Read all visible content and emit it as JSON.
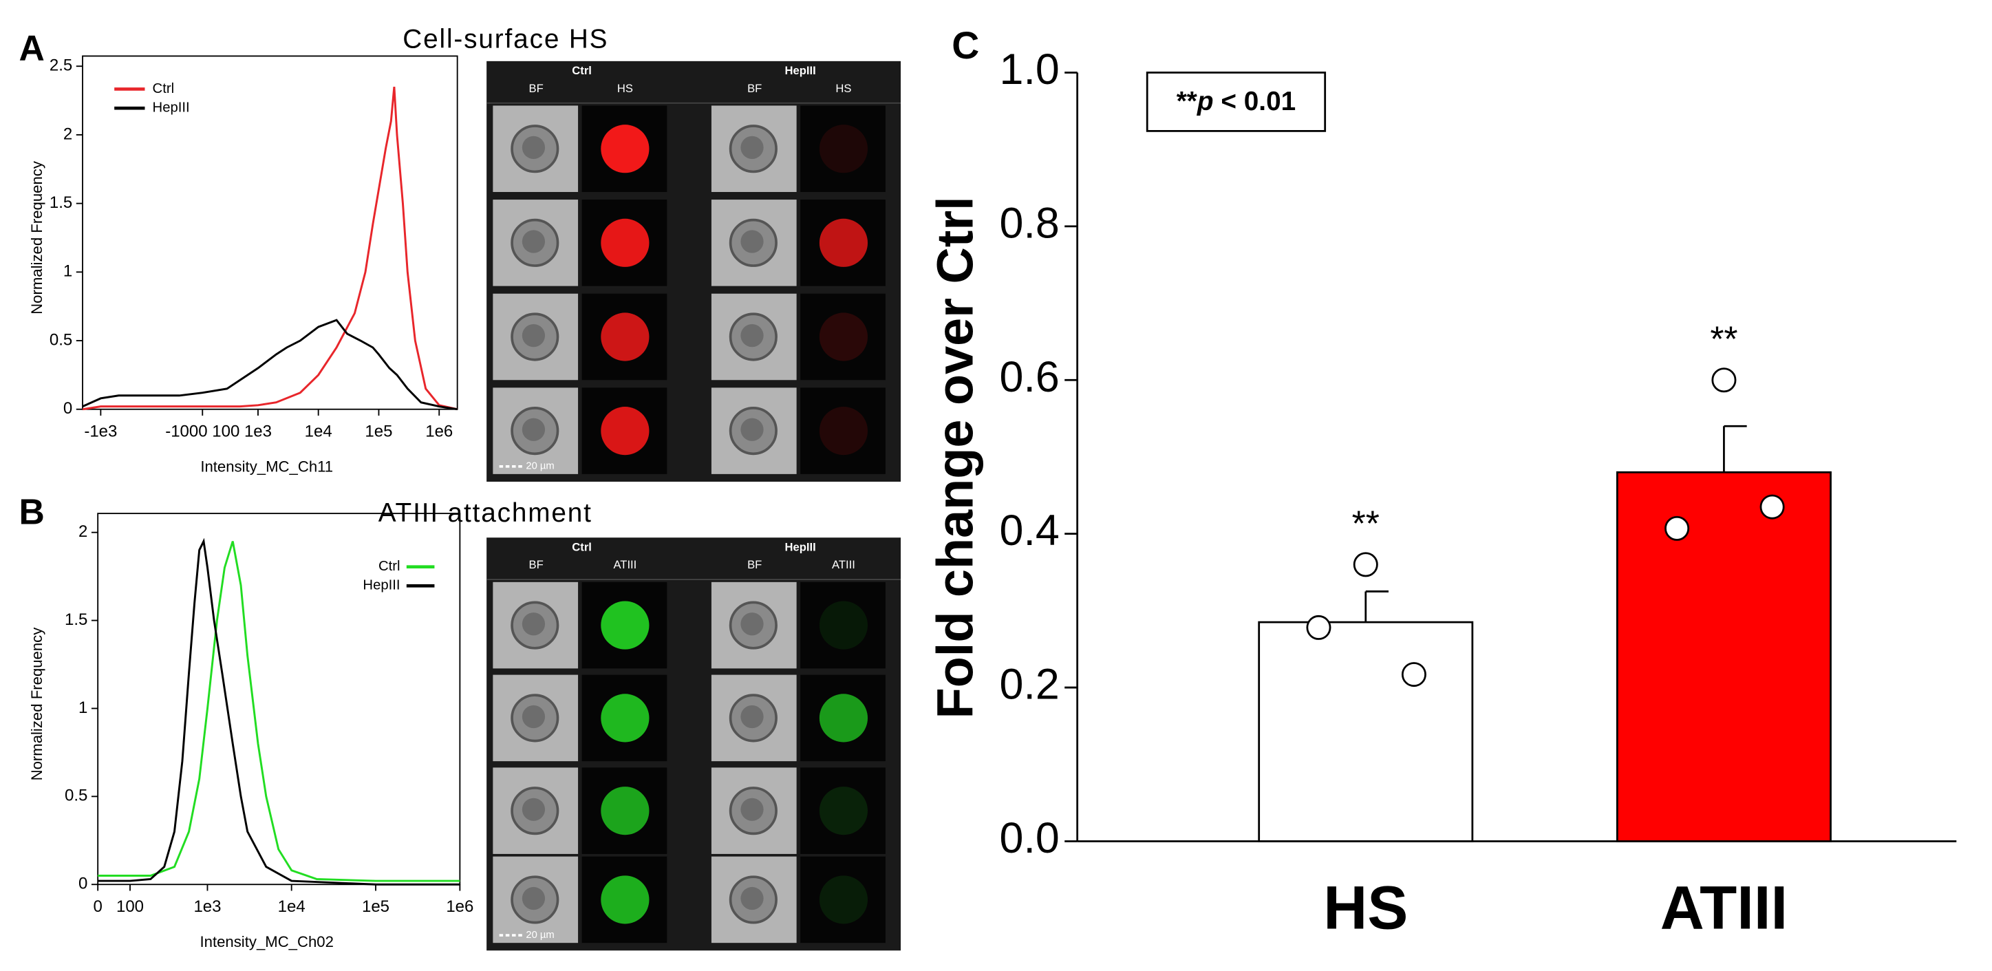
{
  "chart_data": [
    {
      "type": "line",
      "panel_label": "A",
      "title": "Cell-surface HS",
      "xlabel": "Intensity_MC_Ch11",
      "ylabel": "Normalized Frequency",
      "xscale": "biexponential",
      "xlim": [
        -2000,
        2000000
      ],
      "xticks": [
        {
          "value": -1000,
          "label": "-1e3"
        },
        {
          "value": 100,
          "label": "-1000 100"
        },
        {
          "value": 1000,
          "label": "1e3"
        },
        {
          "value": 10000,
          "label": "1e4"
        },
        {
          "value": 100000,
          "label": "1e5"
        },
        {
          "value": 1000000,
          "label": "1e6"
        }
      ],
      "ylim": [
        0,
        2.5
      ],
      "yticks": [
        0,
        0.5,
        1,
        1.5,
        2,
        2.5
      ],
      "legend": "top-left",
      "series": [
        {
          "name": "Ctrl",
          "color": "#e8262b",
          "x": [
            -2000,
            -1000,
            0,
            100,
            500,
            1000,
            2000,
            5000,
            10000,
            20000,
            40000,
            60000,
            80000,
            100000,
            130000,
            160000,
            180000,
            200000,
            250000,
            300000,
            400000,
            600000,
            1000000,
            2000000
          ],
          "values": [
            0,
            0.02,
            0.02,
            0.02,
            0.02,
            0.03,
            0.05,
            0.12,
            0.25,
            0.45,
            0.7,
            1.0,
            1.35,
            1.6,
            1.9,
            2.1,
            2.35,
            2.0,
            1.5,
            1.0,
            0.5,
            0.15,
            0.03,
            0
          ]
        },
        {
          "name": "HepIII",
          "color": "#000000",
          "x": [
            -2000,
            -1000,
            -500,
            0,
            100,
            300,
            1000,
            2000,
            3000,
            5000,
            10000,
            20000,
            30000,
            50000,
            80000,
            100000,
            150000,
            200000,
            300000,
            500000,
            1000000,
            2000000
          ],
          "values": [
            0.02,
            0.08,
            0.1,
            0.1,
            0.12,
            0.15,
            0.3,
            0.4,
            0.45,
            0.5,
            0.6,
            0.65,
            0.55,
            0.5,
            0.45,
            0.4,
            0.3,
            0.25,
            0.15,
            0.05,
            0.02,
            0
          ]
        }
      ]
    },
    {
      "type": "line",
      "panel_label": "B",
      "title": "ATIII attachment",
      "xlabel": "Intensity_MC_Ch02",
      "ylabel": "Normalized Frequency",
      "xscale": "biexponential",
      "xlim": [
        0,
        1000000
      ],
      "xticks": [
        0,
        100,
        {
          "value": 1000,
          "label": "1e3"
        },
        {
          "value": 10000,
          "label": "1e4"
        },
        {
          "value": 100000,
          "label": "1e5"
        },
        {
          "value": 1000000,
          "label": "1e6"
        }
      ],
      "ylim": [
        0,
        2.05
      ],
      "yticks": [
        0,
        0.5,
        1,
        1.5,
        2
      ],
      "legend": "top-right",
      "series": [
        {
          "name": "Ctrl",
          "color": "#22dd22",
          "x": [
            0,
            50,
            100,
            200,
            400,
            600,
            800,
            1000,
            1300,
            1600,
            2000,
            2500,
            3000,
            4000,
            5000,
            7000,
            10000,
            20000,
            100000,
            1000000
          ],
          "values": [
            0.05,
            0.05,
            0.05,
            0.05,
            0.1,
            0.3,
            0.6,
            1.0,
            1.5,
            1.8,
            1.95,
            1.7,
            1.3,
            0.8,
            0.5,
            0.2,
            0.08,
            0.03,
            0.02,
            0.02
          ]
        },
        {
          "name": "HepIII",
          "color": "#000000",
          "x": [
            0,
            100,
            200,
            300,
            400,
            500,
            600,
            700,
            800,
            900,
            1000,
            1200,
            1500,
            2000,
            2500,
            3000,
            5000,
            10000,
            100000,
            1000000
          ],
          "values": [
            0.02,
            0.02,
            0.03,
            0.1,
            0.3,
            0.7,
            1.2,
            1.6,
            1.9,
            1.95,
            1.8,
            1.5,
            1.2,
            0.8,
            0.5,
            0.3,
            0.1,
            0.02,
            0,
            0
          ]
        }
      ]
    },
    {
      "type": "bar",
      "panel_label": "C",
      "ylabel": "Fold change over Ctrl",
      "categories": [
        "HS",
        "ATIII"
      ],
      "values": [
        0.285,
        0.48
      ],
      "errors": [
        0.04,
        0.06
      ],
      "colors": [
        "#ffffff",
        "#ff0000"
      ],
      "points": [
        [
          0.278,
          0.36,
          0.217
        ],
        [
          0.407,
          0.6,
          0.435
        ]
      ],
      "significance": [
        "**",
        "**"
      ],
      "note": [
        "**",
        "p",
        " < 0.01"
      ],
      "ylim": [
        0,
        1
      ],
      "yticks": [
        {
          "value": 0,
          "label": "0.0"
        },
        {
          "value": 0.2,
          "label": "0.2"
        },
        {
          "value": 0.4,
          "label": "0.4"
        },
        {
          "value": 0.6,
          "label": "0.6"
        },
        {
          "value": 0.8,
          "label": "0.8"
        },
        {
          "value": 1,
          "label": "1.0"
        }
      ]
    }
  ],
  "micrographs": [
    {
      "groups": [
        "Ctrl",
        "HepIII"
      ],
      "channels": [
        "BF",
        "HS"
      ],
      "scale_bar": "20 µm",
      "color": "#ff1a1a"
    },
    {
      "groups": [
        "Ctrl",
        "HepIII"
      ],
      "channels": [
        "BF",
        "ATIII"
      ],
      "scale_bar": "20 µm",
      "color": "#22cc22"
    }
  ]
}
